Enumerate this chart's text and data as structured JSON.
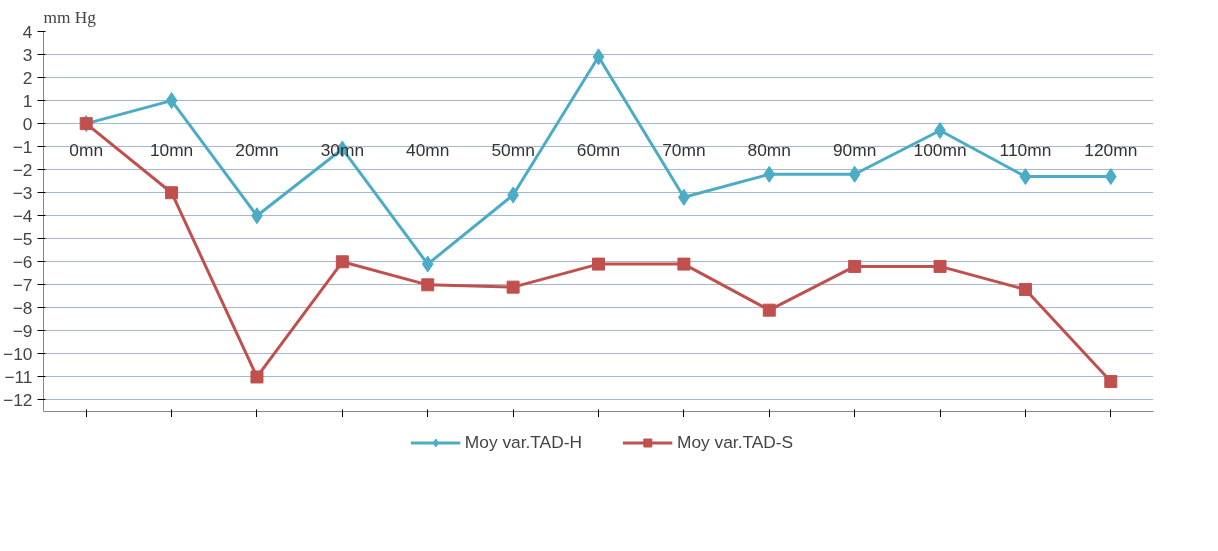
{
  "chart_data": {
    "type": "line",
    "ylabel": "mm Hg",
    "categories": [
      "0mn",
      "10mn",
      "20mn",
      "30mn",
      "40mn",
      "50mn",
      "60mn",
      "70mn",
      "80mn",
      "90mn",
      "100mn",
      "110mn",
      "120mn"
    ],
    "series": [
      {
        "name": "Moy var.TAD-H",
        "color": "#4bacc6",
        "marker": "diamond",
        "values": [
          0,
          1,
          -4,
          -1.1,
          -6.1,
          -3.1,
          2.9,
          -3.2,
          -2.2,
          -2.2,
          -0.3,
          -2.3,
          -2.3
        ]
      },
      {
        "name": "Moy var.TAD-S",
        "color": "#c0504d",
        "marker": "square",
        "values": [
          0,
          -3,
          -11,
          -6,
          -7,
          -7.1,
          -6.1,
          -6.1,
          -8.1,
          -6.2,
          -6.2,
          -7.2,
          -11.2
        ]
      }
    ],
    "ylim": [
      -12.5,
      4
    ],
    "yticks": [
      -12,
      -11,
      -10,
      -9,
      -8,
      -7,
      -6,
      -5,
      -4,
      -3,
      -2,
      -1,
      0,
      1,
      2,
      3,
      4
    ],
    "grid": "y",
    "legend": "bottom",
    "line_style": "solid"
  }
}
